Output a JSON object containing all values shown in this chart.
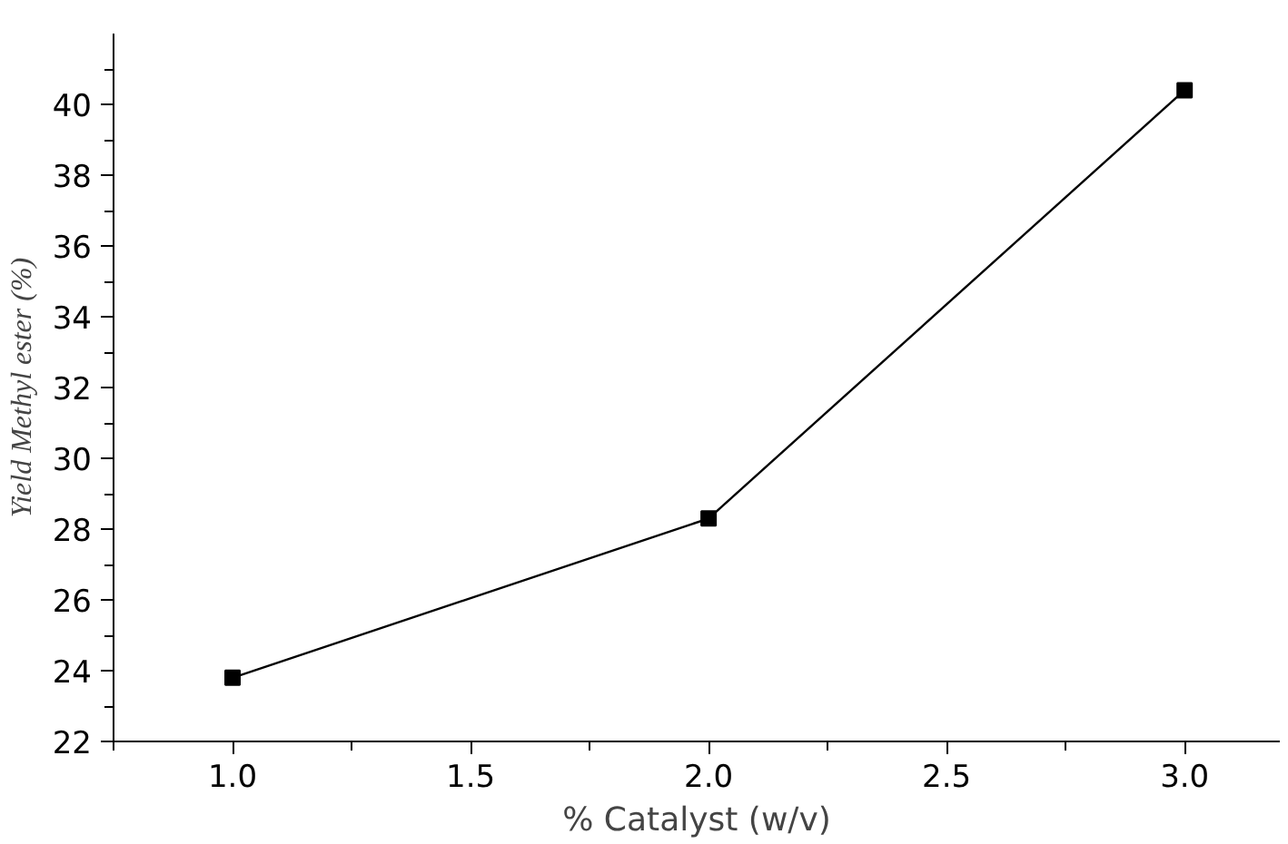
{
  "chart_data": {
    "type": "line",
    "xlabel": "% Catalyst (w/v)",
    "ylabel": "Yield Methyl ester (%)",
    "x": [
      1.0,
      2.0,
      3.0
    ],
    "series": [
      {
        "color": "#000000",
        "values": [
          23.8,
          28.3,
          40.4
        ]
      }
    ],
    "xlim": [
      0.75,
      3.2
    ],
    "xticks": [
      {
        "value": 0.75,
        "label": null
      },
      {
        "value": 1,
        "label": "1.0"
      },
      {
        "value": 1.25,
        "label": null
      },
      1.5,
      {
        "value": 1.75,
        "label": null
      },
      {
        "value": 2,
        "label": "2.0"
      },
      {
        "value": 2.25,
        "label": null
      },
      2.5,
      {
        "value": 2.75,
        "label": null
      },
      {
        "value": 3,
        "label": "3.0"
      }
    ],
    "ylim": [
      22,
      42
    ],
    "yticks": [
      22,
      {
        "value": 23,
        "label": null
      },
      24,
      {
        "value": 25,
        "label": null
      },
      26,
      {
        "value": 27,
        "label": null
      },
      28,
      {
        "value": 29,
        "label": null
      },
      30,
      {
        "value": 31,
        "label": null
      },
      32,
      {
        "value": 33,
        "label": null
      },
      34,
      {
        "value": 35,
        "label": null
      },
      36,
      {
        "value": 37,
        "label": null
      },
      38,
      {
        "value": 39,
        "label": null
      },
      40,
      {
        "value": 41,
        "label": null
      }
    ],
    "marker": "square",
    "line_style": "solid",
    "grid": false
  }
}
